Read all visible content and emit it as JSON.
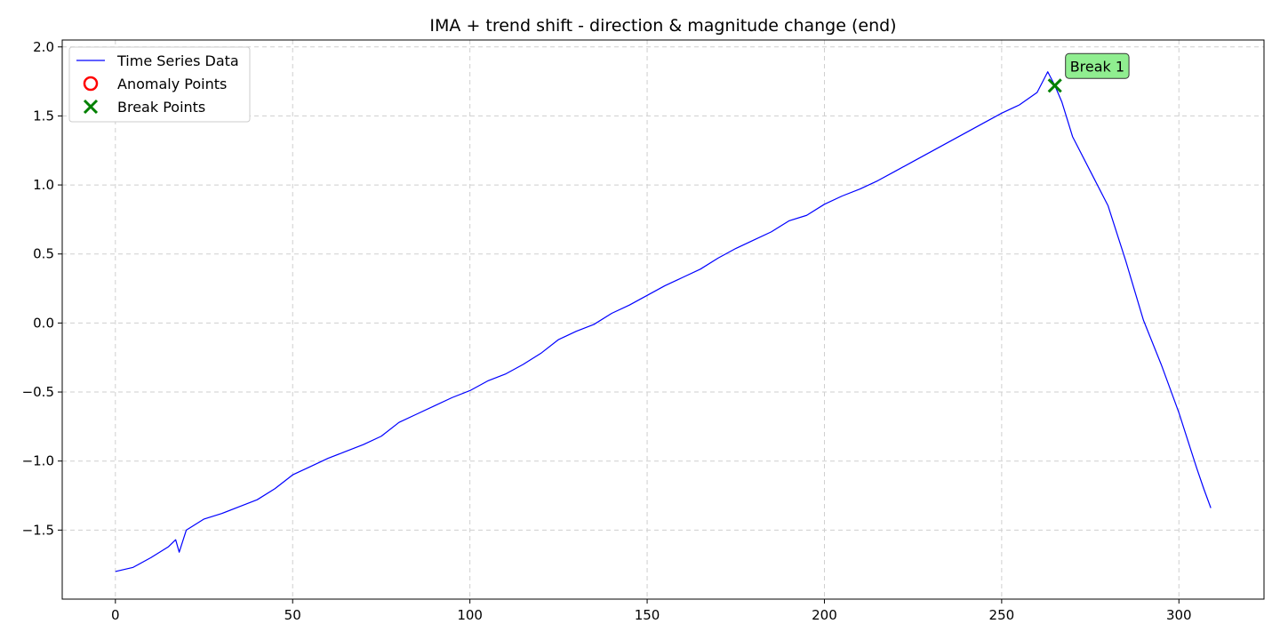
{
  "chart_data": {
    "type": "line",
    "title": "IMA + trend shift - direction & magnitude change (end)",
    "xlabel": "",
    "ylabel": "",
    "xlim": [
      -15,
      324
    ],
    "ylim": [
      -2.0,
      2.05
    ],
    "xticks": [
      0,
      50,
      100,
      150,
      200,
      250,
      300
    ],
    "xtick_labels": [
      "0",
      "50",
      "100",
      "150",
      "200",
      "250",
      "300"
    ],
    "yticks": [
      -1.5,
      -1.0,
      -0.5,
      0.0,
      0.5,
      1.0,
      1.5,
      2.0
    ],
    "ytick_labels": [
      "−1.5",
      "−1.0",
      "−0.5",
      "0.0",
      "0.5",
      "1.0",
      "1.5",
      "2.0"
    ],
    "grid": true,
    "legend_position": "top-left",
    "series": [
      {
        "name": "Time Series Data",
        "color": "#0000ff",
        "x": [
          0,
          5,
          10,
          15,
          17,
          18,
          20,
          25,
          30,
          35,
          40,
          45,
          50,
          55,
          60,
          65,
          70,
          75,
          80,
          85,
          90,
          95,
          100,
          105,
          110,
          115,
          120,
          125,
          130,
          135,
          140,
          145,
          150,
          155,
          160,
          165,
          170,
          175,
          180,
          185,
          190,
          195,
          200,
          205,
          210,
          215,
          220,
          225,
          230,
          235,
          240,
          245,
          250,
          255,
          260,
          263,
          265,
          267,
          270,
          275,
          280,
          285,
          290,
          295,
          300,
          305,
          307,
          309
        ],
        "y": [
          -1.8,
          -1.77,
          -1.7,
          -1.62,
          -1.57,
          -1.66,
          -1.5,
          -1.42,
          -1.38,
          -1.33,
          -1.28,
          -1.2,
          -1.1,
          -1.04,
          -0.98,
          -0.93,
          -0.88,
          -0.82,
          -0.72,
          -0.66,
          -0.6,
          -0.54,
          -0.49,
          -0.42,
          -0.37,
          -0.3,
          -0.22,
          -0.12,
          -0.06,
          -0.01,
          0.07,
          0.13,
          0.2,
          0.27,
          0.33,
          0.39,
          0.47,
          0.54,
          0.6,
          0.66,
          0.74,
          0.78,
          0.86,
          0.92,
          0.97,
          1.03,
          1.1,
          1.17,
          1.24,
          1.31,
          1.38,
          1.45,
          1.52,
          1.58,
          1.67,
          1.82,
          1.72,
          1.6,
          1.35,
          1.1,
          0.85,
          0.45,
          0.02,
          -0.3,
          -0.65,
          -1.05,
          -1.2,
          -1.34
        ]
      },
      {
        "name": "Anomaly Points",
        "color": "#ff0000",
        "x": [],
        "y": []
      },
      {
        "name": "Break Points",
        "color": "#008000",
        "x": [
          265
        ],
        "y": [
          1.72
        ]
      }
    ],
    "annotations": [
      {
        "text": "Break 1",
        "x": 265,
        "y": 1.72,
        "facecolor": "#90ee90"
      }
    ]
  }
}
